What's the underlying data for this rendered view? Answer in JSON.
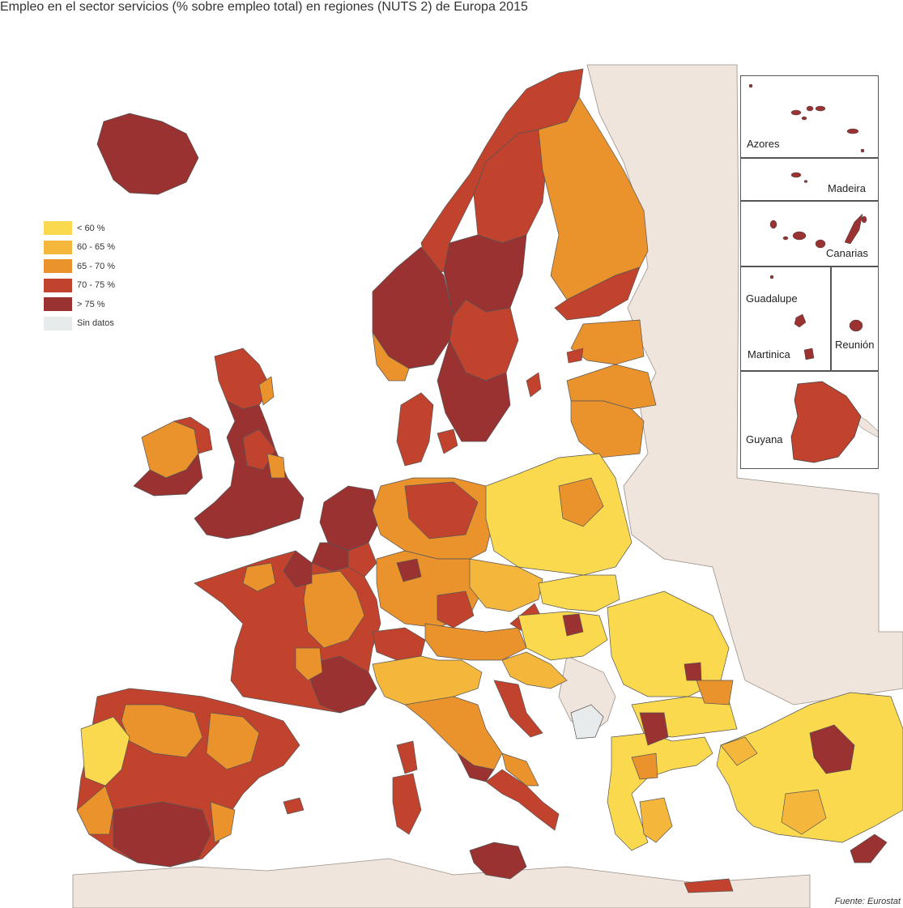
{
  "title": "Empleo en el sector servicios (% sobre empleo total) en regiones (NUTS 2) de Europa 2015",
  "legend": [
    {
      "label": "< 60 %",
      "color": "#fbd94e"
    },
    {
      "label": "60 - 65 %",
      "color": "#f5b73b"
    },
    {
      "label": "65 - 70 %",
      "color": "#ea922c"
    },
    {
      "label": "70 - 75 %",
      "color": "#c1432e"
    },
    {
      "label": "> 75 %",
      "color": "#993230"
    },
    {
      "label": "Sin datos",
      "color": "#e8ebeb"
    }
  ],
  "insets": {
    "azores": "Azores",
    "madeira": "Madeira",
    "canarias": "Canarias",
    "guadalupe": "Guadalupe",
    "martinica": "Martinica",
    "reunion": "Reunión",
    "guyana": "Guyana"
  },
  "source": "Fuente: Eurostat",
  "colors": {
    "sea": "#ffffff",
    "non_eu_land": "#efe5dc",
    "border": "#555555"
  }
}
